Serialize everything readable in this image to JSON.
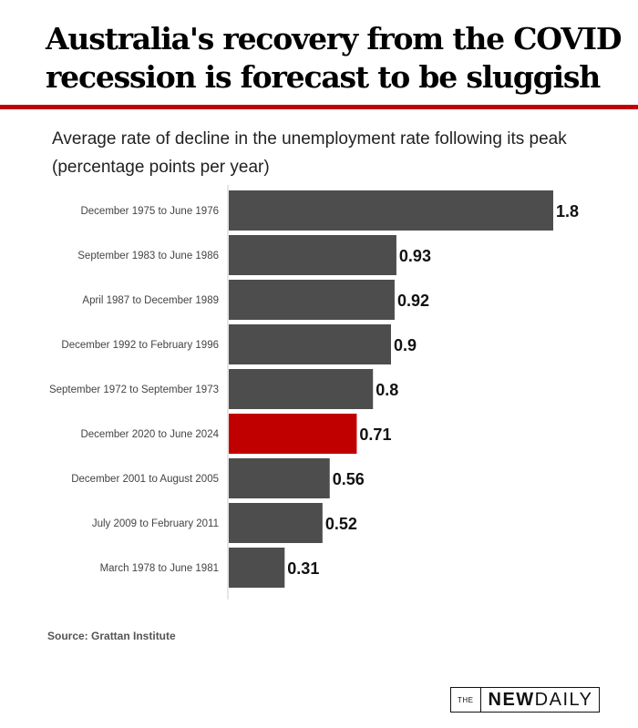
{
  "header": {
    "title": "Australia's recovery from the COVID recession is forecast to be sluggish"
  },
  "chart_data": {
    "type": "bar",
    "orientation": "horizontal",
    "title": "Average rate of decline in the unemployment rate following its peak (percentage points per year)",
    "xlabel": "",
    "ylabel": "",
    "xlim": [
      0,
      1.8
    ],
    "grid": false,
    "categories": [
      "December 1975 to June 1976",
      "September 1983 to June 1986",
      "April 1987 to December 1989",
      "December 1992 to February 1996",
      "September 1972 to September 1973",
      "December 2020 to June 2024",
      "December 2001 to August 2005",
      "July 2009 to February 2011",
      "March 1978 to June 1981"
    ],
    "values": [
      1.8,
      0.93,
      0.92,
      0.9,
      0.8,
      0.71,
      0.56,
      0.52,
      0.31
    ],
    "value_labels": [
      "1.8",
      "0.93",
      "0.92",
      "0.9",
      "0.8",
      "0.71",
      "0.56",
      "0.52",
      "0.31"
    ],
    "highlight_index": 5,
    "colors": {
      "default": "#4d4d4d",
      "highlight": "#c00000"
    }
  },
  "footer": {
    "source": "Source: Grattan Institute",
    "logo_the": "THE",
    "logo_new": "NEW",
    "logo_daily": "DAILY"
  },
  "colors": {
    "accent": "#c00000",
    "bar": "#4d4d4d"
  }
}
